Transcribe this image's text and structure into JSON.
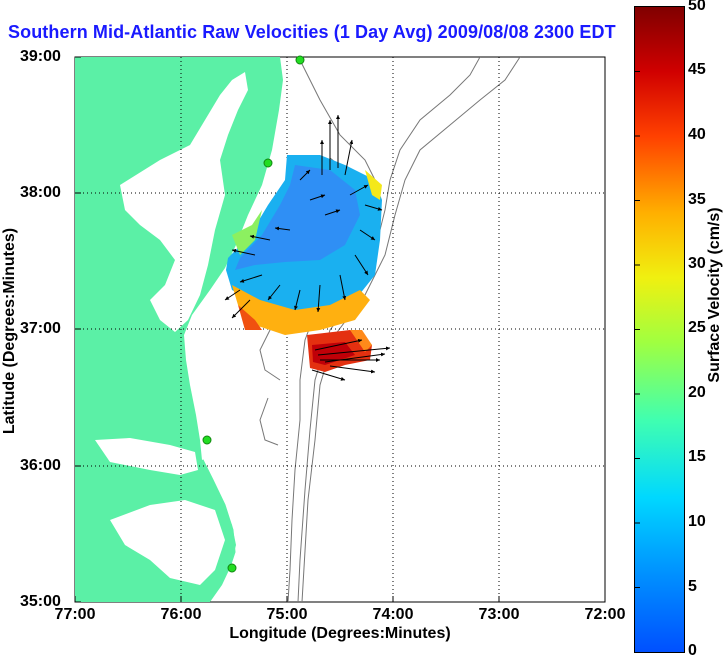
{
  "title": "Southern Mid-Atlantic Raw Velocities (1 Day Avg) 2009/08/08 2300 EDT",
  "map": {
    "x_axis": {
      "label": "Longitude (Degrees:Minutes)",
      "ticks": [
        "77:00",
        "76:00",
        "75:00",
        "74:00",
        "73:00",
        "72:00"
      ]
    },
    "y_axis": {
      "label": "Latitude (Degrees:Minutes)",
      "ticks": [
        "39:00",
        "38:00",
        "37:00",
        "36:00",
        "35:00"
      ]
    },
    "land_color": "#5bf0a6",
    "grid": "dotted"
  },
  "colorbar": {
    "label": "Surface Velocity (cm/s)",
    "ticks": [
      "50",
      "45",
      "40",
      "35",
      "30",
      "25",
      "20",
      "15",
      "10",
      "5",
      "0"
    ],
    "min": 0,
    "max": 50,
    "colormap": "jet"
  }
}
